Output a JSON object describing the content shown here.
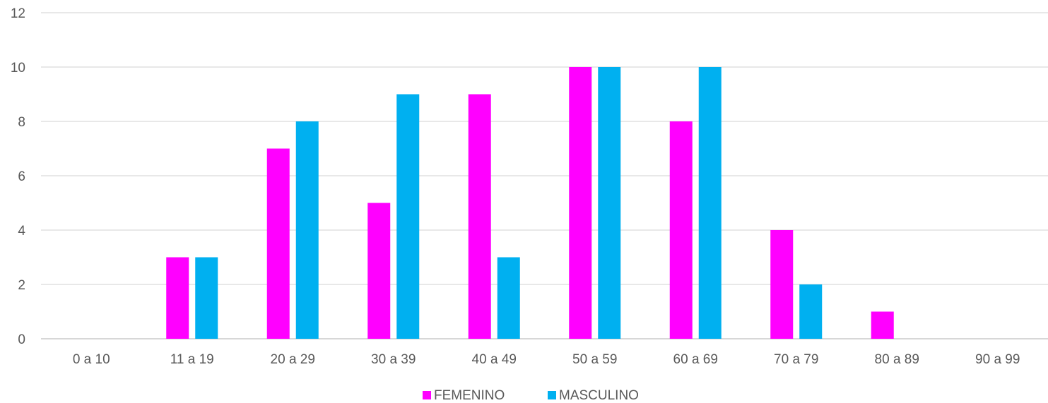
{
  "chart_data": {
    "type": "bar",
    "title": "",
    "xlabel": "",
    "ylabel": "",
    "categories": [
      "0 a 10",
      "11 a 19",
      "20 a 29",
      "30 a 39",
      "40 a 49",
      "50 a 59",
      "60 a 69",
      "70 a 79",
      "80 a 89",
      "90 a 99"
    ],
    "series": [
      {
        "name": "FEMENINO",
        "color": "#FF00FF",
        "values": [
          0,
          3,
          7,
          5,
          9,
          10,
          8,
          4,
          1,
          0
        ]
      },
      {
        "name": "MASCULINO",
        "color": "#00B0F0",
        "values": [
          0,
          3,
          8,
          9,
          3,
          10,
          10,
          2,
          0,
          0
        ]
      }
    ],
    "ylim": [
      0,
      12
    ],
    "yticks": [
      "0",
      "2",
      "4",
      "6",
      "8",
      "10",
      "12"
    ],
    "grid": true,
    "legend_position": "bottom"
  }
}
